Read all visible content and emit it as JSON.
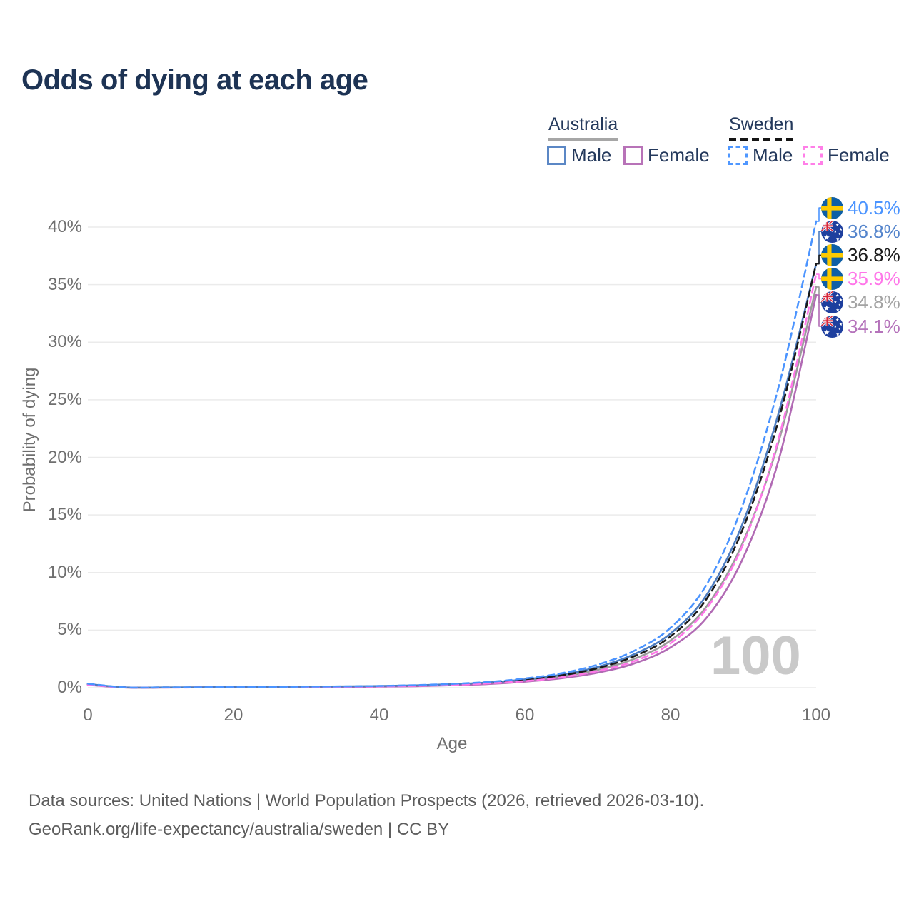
{
  "title": "Odds of dying at each age",
  "legend": {
    "groups": [
      {
        "label": "Australia",
        "line_style": "solid",
        "underline_color": "#a6a6a6",
        "items": [
          {
            "label": "Male",
            "color": "#5b87c5",
            "dashed": false
          },
          {
            "label": "Female",
            "color": "#b873b8",
            "dashed": false
          }
        ]
      },
      {
        "label": "Sweden",
        "line_style": "dashed",
        "underline_color": "#151515",
        "items": [
          {
            "label": "Male",
            "color": "#4f97ff",
            "dashed": true
          },
          {
            "label": "Female",
            "color": "#ff7fe8",
            "dashed": true
          }
        ]
      }
    ]
  },
  "chart_data": {
    "type": "line",
    "title": "Odds of dying at each age",
    "xlabel": "Age",
    "ylabel": "Probability of dying",
    "xlim": [
      0,
      100
    ],
    "ylim": [
      0,
      42
    ],
    "grid": "horizontal",
    "xticks": [
      0,
      20,
      40,
      60,
      80,
      100
    ],
    "yticks": [
      "0%",
      "5%",
      "10%",
      "15%",
      "20%",
      "25%",
      "30%",
      "35%",
      "40%"
    ],
    "watermark": "100",
    "x": [
      0,
      5,
      10,
      15,
      20,
      25,
      30,
      35,
      40,
      45,
      50,
      55,
      60,
      65,
      70,
      75,
      80,
      85,
      90,
      95,
      100
    ],
    "series": [
      {
        "name": "Sweden Male",
        "country": "Sweden",
        "sex": "Male",
        "color": "#4b94ff",
        "label_color": "#4b94ff",
        "dashed": true,
        "flag": "sweden",
        "end_label": "40.5%",
        "end_value": 40.5,
        "values": [
          0.35,
          0.03,
          0.02,
          0.03,
          0.06,
          0.07,
          0.09,
          0.11,
          0.15,
          0.22,
          0.33,
          0.5,
          0.8,
          1.25,
          2.0,
          3.2,
          5.2,
          9.0,
          16.0,
          26.5,
          40.5
        ]
      },
      {
        "name": "Australia Male",
        "country": "Australia",
        "sex": "Male",
        "color": "#4c7cc0",
        "label_color": "#5585cc",
        "dashed": false,
        "flag": "australia",
        "end_label": "36.8%",
        "end_value": 36.8,
        "values": [
          0.32,
          0.03,
          0.02,
          0.03,
          0.06,
          0.07,
          0.09,
          0.11,
          0.14,
          0.2,
          0.3,
          0.45,
          0.72,
          1.12,
          1.8,
          2.9,
          4.7,
          8.1,
          14.4,
          24.2,
          36.8
        ]
      },
      {
        "name": "Sweden (both sexes)",
        "country": "Sweden",
        "sex": "Both",
        "color": "#1a1a1a",
        "label_color": "#1a1a1a",
        "dashed": true,
        "flag": "sweden",
        "end_label": "36.8%",
        "end_value": 36.8,
        "values": [
          0.3,
          0.03,
          0.02,
          0.02,
          0.05,
          0.06,
          0.08,
          0.1,
          0.13,
          0.19,
          0.28,
          0.43,
          0.68,
          1.06,
          1.7,
          2.72,
          4.45,
          7.75,
          13.9,
          23.6,
          36.8
        ]
      },
      {
        "name": "Sweden Female",
        "country": "Sweden",
        "sex": "Female",
        "color": "#ff77e9",
        "label_color": "#ff77e9",
        "dashed": true,
        "flag": "sweden",
        "end_label": "35.9%",
        "end_value": 35.9,
        "values": [
          0.26,
          0.02,
          0.01,
          0.02,
          0.04,
          0.04,
          0.06,
          0.08,
          0.11,
          0.16,
          0.24,
          0.37,
          0.57,
          0.9,
          1.45,
          2.3,
          3.85,
          6.9,
          12.5,
          22.0,
          35.9
        ]
      },
      {
        "name": "Australia (both sexes)",
        "country": "Australia",
        "sex": "Both",
        "color": "#9b9b9b",
        "label_color": "#a3a3a3",
        "dashed": false,
        "flag": "australia",
        "end_label": "34.8%",
        "end_value": 34.8,
        "values": [
          0.28,
          0.02,
          0.01,
          0.02,
          0.05,
          0.05,
          0.07,
          0.09,
          0.12,
          0.17,
          0.26,
          0.39,
          0.62,
          0.97,
          1.55,
          2.5,
          4.1,
          7.1,
          12.7,
          21.7,
          34.8
        ]
      },
      {
        "name": "Australia Female",
        "country": "Australia",
        "sex": "Female",
        "color": "#b16ab4",
        "label_color": "#b573bb",
        "dashed": false,
        "flag": "australia",
        "end_label": "34.1%",
        "end_value": 34.1,
        "values": [
          0.24,
          0.02,
          0.01,
          0.02,
          0.04,
          0.04,
          0.05,
          0.07,
          0.09,
          0.13,
          0.21,
          0.32,
          0.52,
          0.82,
          1.3,
          2.1,
          3.5,
          6.1,
          11.3,
          20.1,
          34.1
        ]
      }
    ]
  },
  "footer": {
    "line1": "Data sources: United Nations | World Population Prospects (2026, retrieved 2026-03-10).",
    "line2": "GeoRank.org/life-expectancy/australia/sweden | CC BY"
  }
}
